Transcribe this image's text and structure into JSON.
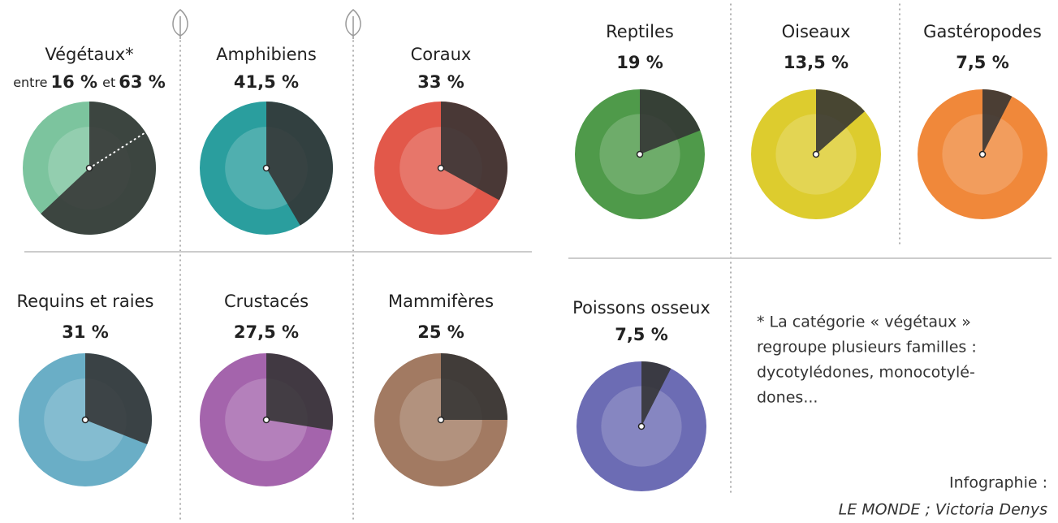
{
  "chart_data": [
    {
      "type": "pie",
      "title": "Végétaux*",
      "values": [
        16,
        63
      ],
      "value_labels": [
        "16 %",
        "63 %"
      ],
      "value_label_prefixes": [
        "entre",
        "et"
      ],
      "color": "#7cc49e"
    },
    {
      "type": "pie",
      "title": "Amphibiens",
      "values": [
        41.5
      ],
      "value_labels": [
        "41,5 %"
      ],
      "color": "#2a9e9e"
    },
    {
      "type": "pie",
      "title": "Coraux",
      "values": [
        33
      ],
      "value_labels": [
        "33 %"
      ],
      "color": "#e2584a"
    },
    {
      "type": "pie",
      "title": "Reptiles",
      "values": [
        19
      ],
      "value_labels": [
        "19 %"
      ],
      "color": "#4f9a4a"
    },
    {
      "type": "pie",
      "title": "Oiseaux",
      "values": [
        13.5
      ],
      "value_labels": [
        "13,5 %"
      ],
      "color": "#ddcc2e"
    },
    {
      "type": "pie",
      "title": "Gastéropodes",
      "values": [
        7.5
      ],
      "value_labels": [
        "7,5 %"
      ],
      "color": "#f0883a"
    },
    {
      "type": "pie",
      "title": "Requins et raies",
      "values": [
        31
      ],
      "value_labels": [
        "31 %"
      ],
      "color": "#6aaec6"
    },
    {
      "type": "pie",
      "title": "Crustacés",
      "values": [
        27.5
      ],
      "value_labels": [
        "27,5 %"
      ],
      "color": "#a464ac"
    },
    {
      "type": "pie",
      "title": "Mammifères",
      "values": [
        25
      ],
      "value_labels": [
        "25 %"
      ],
      "color": "#a27a62"
    },
    {
      "type": "pie",
      "title": "Poissons osseux",
      "values": [
        7.5
      ],
      "value_labels": [
        "7,5 %"
      ],
      "color": "#6c6cb4"
    }
  ],
  "note": [
    "* La catégorie « végétaux »",
    "regroupe plusieurs familles :",
    "dycotylédones, monocotylé-",
    "dones..."
  ],
  "credit": [
    "Infographie :",
    "LE MONDE ; Victoria Denys"
  ]
}
